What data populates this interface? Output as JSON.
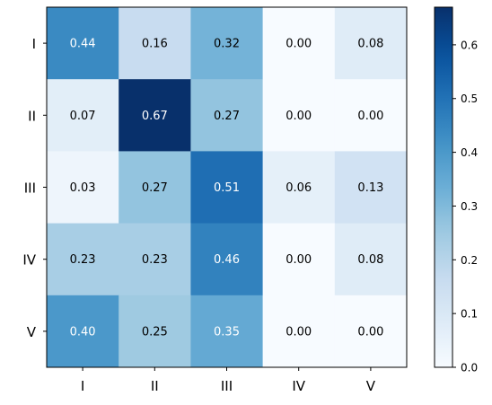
{
  "chart_data": {
    "type": "heatmap",
    "title": "",
    "xlabel": "",
    "ylabel": "",
    "x_categories": [
      "I",
      "II",
      "III",
      "IV",
      "V"
    ],
    "y_categories": [
      "I",
      "II",
      "III",
      "IV",
      "V"
    ],
    "values": [
      [
        0.44,
        0.16,
        0.32,
        0.0,
        0.08
      ],
      [
        0.07,
        0.67,
        0.27,
        0.0,
        0.0
      ],
      [
        0.03,
        0.27,
        0.51,
        0.06,
        0.13
      ],
      [
        0.23,
        0.23,
        0.46,
        0.0,
        0.08
      ],
      [
        0.4,
        0.25,
        0.35,
        0.0,
        0.0
      ]
    ],
    "cell_labels": [
      [
        "0.44",
        "0.16",
        "0.32",
        "0.00",
        "0.08"
      ],
      [
        "0.07",
        "0.67",
        "0.27",
        "0.00",
        "0.00"
      ],
      [
        "0.03",
        "0.27",
        "0.51",
        "0.06",
        "0.13"
      ],
      [
        "0.23",
        "0.23",
        "0.46",
        "0.00",
        "0.08"
      ],
      [
        "0.40",
        "0.25",
        "0.35",
        "0.00",
        "0.00"
      ]
    ],
    "colormap": "Blues",
    "vmin": 0.0,
    "vmax": 0.67,
    "colorbar_ticks": [
      0.0,
      0.1,
      0.2,
      0.3,
      0.4,
      0.5,
      0.6
    ],
    "colorbar_tick_labels": [
      "0.0",
      "0.1",
      "0.2",
      "0.3",
      "0.4",
      "0.5",
      "0.6"
    ],
    "colorbar_position": "right",
    "grid": false
  }
}
